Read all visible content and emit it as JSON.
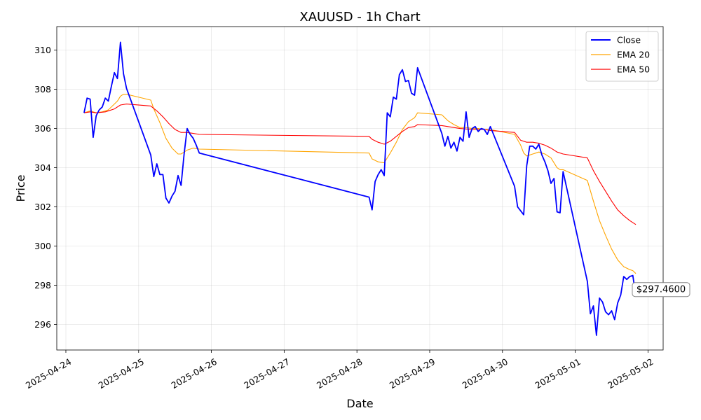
{
  "chart_data": {
    "type": "line",
    "title": "XAUUSD - 1h Chart",
    "xlabel": "Date",
    "ylabel": "Price",
    "xlim": [
      "2025-04-23 21:00",
      "2025-05-02 05:00"
    ],
    "ylim": [
      294.7,
      311.2
    ],
    "grid": true,
    "legend_position": "top-right",
    "x_ticks": [
      {
        "t": "2025-04-24 00:00",
        "label": "2025-04-24"
      },
      {
        "t": "2025-04-25 00:00",
        "label": "2025-04-25"
      },
      {
        "t": "2025-04-26 00:00",
        "label": "2025-04-26"
      },
      {
        "t": "2025-04-27 00:00",
        "label": "2025-04-27"
      },
      {
        "t": "2025-04-28 00:00",
        "label": "2025-04-28"
      },
      {
        "t": "2025-04-29 00:00",
        "label": "2025-04-29"
      },
      {
        "t": "2025-04-30 00:00",
        "label": "2025-04-30"
      },
      {
        "t": "2025-05-01 00:00",
        "label": "2025-05-01"
      },
      {
        "t": "2025-05-02 00:00",
        "label": "2025-05-02"
      }
    ],
    "y_ticks": [
      296,
      298,
      300,
      302,
      304,
      306,
      308,
      310
    ],
    "last_price_label": "$297.4600",
    "last_price": 297.46,
    "series": [
      {
        "name": "Close",
        "color": "#0000ff",
        "points": [
          [
            "2025-04-24 06:00",
            306.8
          ],
          [
            "2025-04-24 07:00",
            307.55
          ],
          [
            "2025-04-24 08:00",
            307.5
          ],
          [
            "2025-04-24 09:00",
            305.55
          ],
          [
            "2025-04-24 10:00",
            306.65
          ],
          [
            "2025-04-24 11:00",
            306.95
          ],
          [
            "2025-04-24 12:00",
            307.1
          ],
          [
            "2025-04-24 13:00",
            307.55
          ],
          [
            "2025-04-24 14:00",
            307.4
          ],
          [
            "2025-04-24 15:00",
            308.15
          ],
          [
            "2025-04-24 16:00",
            308.85
          ],
          [
            "2025-04-24 17:00",
            308.55
          ],
          [
            "2025-04-24 18:00",
            310.4
          ],
          [
            "2025-04-24 19:00",
            308.8
          ],
          [
            "2025-04-24 20:00",
            308.05
          ],
          [
            "2025-04-25 04:00",
            304.65
          ],
          [
            "2025-04-25 05:00",
            303.55
          ],
          [
            "2025-04-25 06:00",
            304.2
          ],
          [
            "2025-04-25 07:00",
            303.65
          ],
          [
            "2025-04-25 08:00",
            303.65
          ],
          [
            "2025-04-25 09:00",
            302.45
          ],
          [
            "2025-04-25 10:00",
            302.2
          ],
          [
            "2025-04-25 11:00",
            302.55
          ],
          [
            "2025-04-25 12:00",
            302.8
          ],
          [
            "2025-04-25 13:00",
            303.6
          ],
          [
            "2025-04-25 14:00",
            303.1
          ],
          [
            "2025-04-25 15:00",
            304.7
          ],
          [
            "2025-04-25 16:00",
            306.0
          ],
          [
            "2025-04-25 17:00",
            305.7
          ],
          [
            "2025-04-25 18:00",
            305.5
          ],
          [
            "2025-04-25 19:00",
            305.15
          ],
          [
            "2025-04-25 20:00",
            304.75
          ],
          [
            "2025-04-28 04:00",
            302.5
          ],
          [
            "2025-04-28 05:00",
            301.85
          ],
          [
            "2025-04-28 06:00",
            303.3
          ],
          [
            "2025-04-28 07:00",
            303.65
          ],
          [
            "2025-04-28 08:00",
            303.9
          ],
          [
            "2025-04-28 09:00",
            303.6
          ],
          [
            "2025-04-28 10:00",
            306.8
          ],
          [
            "2025-04-28 11:00",
            306.6
          ],
          [
            "2025-04-28 12:00",
            307.6
          ],
          [
            "2025-04-28 13:00",
            307.5
          ],
          [
            "2025-04-28 14:00",
            308.75
          ],
          [
            "2025-04-28 15:00",
            309.0
          ],
          [
            "2025-04-28 16:00",
            308.4
          ],
          [
            "2025-04-28 17:00",
            308.45
          ],
          [
            "2025-04-28 18:00",
            307.8
          ],
          [
            "2025-04-28 19:00",
            307.7
          ],
          [
            "2025-04-28 20:00",
            309.1
          ],
          [
            "2025-04-29 04:00",
            305.75
          ],
          [
            "2025-04-29 05:00",
            305.1
          ],
          [
            "2025-04-29 06:00",
            305.6
          ],
          [
            "2025-04-29 07:00",
            305.0
          ],
          [
            "2025-04-29 08:00",
            305.3
          ],
          [
            "2025-04-29 09:00",
            304.85
          ],
          [
            "2025-04-29 10:00",
            305.55
          ],
          [
            "2025-04-29 11:00",
            305.35
          ],
          [
            "2025-04-29 12:00",
            306.85
          ],
          [
            "2025-04-29 13:00",
            305.55
          ],
          [
            "2025-04-29 14:00",
            306.0
          ],
          [
            "2025-04-29 15:00",
            306.1
          ],
          [
            "2025-04-29 16:00",
            305.85
          ],
          [
            "2025-04-29 17:00",
            306.0
          ],
          [
            "2025-04-29 18:00",
            305.95
          ],
          [
            "2025-04-29 19:00",
            305.7
          ],
          [
            "2025-04-29 20:00",
            306.1
          ],
          [
            "2025-04-30 04:00",
            303.05
          ],
          [
            "2025-04-30 05:00",
            302.0
          ],
          [
            "2025-04-30 06:00",
            301.8
          ],
          [
            "2025-04-30 07:00",
            301.6
          ],
          [
            "2025-04-30 08:00",
            304.1
          ],
          [
            "2025-04-30 09:00",
            305.1
          ],
          [
            "2025-04-30 10:00",
            305.1
          ],
          [
            "2025-04-30 11:00",
            304.95
          ],
          [
            "2025-04-30 12:00",
            305.2
          ],
          [
            "2025-04-30 13:00",
            304.65
          ],
          [
            "2025-04-30 14:00",
            304.3
          ],
          [
            "2025-04-30 15:00",
            303.85
          ],
          [
            "2025-04-30 16:00",
            303.2
          ],
          [
            "2025-04-30 17:00",
            303.45
          ],
          [
            "2025-04-30 18:00",
            301.75
          ],
          [
            "2025-04-30 19:00",
            301.7
          ],
          [
            "2025-04-30 20:00",
            303.8
          ],
          [
            "2025-05-01 04:00",
            298.2
          ],
          [
            "2025-05-01 05:00",
            296.55
          ],
          [
            "2025-05-01 06:00",
            296.95
          ],
          [
            "2025-05-01 07:00",
            295.45
          ],
          [
            "2025-05-01 08:00",
            297.35
          ],
          [
            "2025-05-01 09:00",
            297.15
          ],
          [
            "2025-05-01 10:00",
            296.65
          ],
          [
            "2025-05-01 11:00",
            296.5
          ],
          [
            "2025-05-01 12:00",
            296.7
          ],
          [
            "2025-05-01 13:00",
            296.25
          ],
          [
            "2025-05-01 14:00",
            297.1
          ],
          [
            "2025-05-01 15:00",
            297.5
          ],
          [
            "2025-05-01 16:00",
            298.45
          ],
          [
            "2025-05-01 17:00",
            298.3
          ],
          [
            "2025-05-01 18:00",
            298.45
          ],
          [
            "2025-05-01 19:00",
            298.5
          ],
          [
            "2025-05-01 20:00",
            297.46
          ]
        ]
      },
      {
        "name": "EMA 20",
        "color": "#ffa500",
        "points": [
          [
            "2025-04-24 06:00",
            306.8
          ],
          [
            "2025-04-24 08:00",
            306.9
          ],
          [
            "2025-04-24 10:00",
            306.8
          ],
          [
            "2025-04-24 12:00",
            306.85
          ],
          [
            "2025-04-24 14:00",
            306.95
          ],
          [
            "2025-04-24 16:00",
            307.25
          ],
          [
            "2025-04-24 17:00",
            307.4
          ],
          [
            "2025-04-24 18:00",
            307.65
          ],
          [
            "2025-04-24 19:00",
            307.75
          ],
          [
            "2025-04-24 20:00",
            307.75
          ],
          [
            "2025-04-25 04:00",
            307.45
          ],
          [
            "2025-04-25 05:00",
            307.0
          ],
          [
            "2025-04-25 07:00",
            306.3
          ],
          [
            "2025-04-25 09:00",
            305.5
          ],
          [
            "2025-04-25 11:00",
            305.0
          ],
          [
            "2025-04-25 13:00",
            304.7
          ],
          [
            "2025-04-25 14:00",
            304.7
          ],
          [
            "2025-04-25 16:00",
            304.9
          ],
          [
            "2025-04-25 18:00",
            305.0
          ],
          [
            "2025-04-25 20:00",
            304.95
          ],
          [
            "2025-04-28 04:00",
            304.75
          ],
          [
            "2025-04-28 05:00",
            304.45
          ],
          [
            "2025-04-28 07:00",
            304.3
          ],
          [
            "2025-04-28 09:00",
            304.25
          ],
          [
            "2025-04-28 11:00",
            304.75
          ],
          [
            "2025-04-28 13:00",
            305.3
          ],
          [
            "2025-04-28 15:00",
            305.95
          ],
          [
            "2025-04-28 17:00",
            306.35
          ],
          [
            "2025-04-28 19:00",
            306.55
          ],
          [
            "2025-04-28 20:00",
            306.8
          ],
          [
            "2025-04-29 04:00",
            306.7
          ],
          [
            "2025-04-29 06:00",
            306.4
          ],
          [
            "2025-04-29 08:00",
            306.2
          ],
          [
            "2025-04-29 10:00",
            306.05
          ],
          [
            "2025-04-29 12:00",
            306.05
          ],
          [
            "2025-04-29 14:00",
            306.0
          ],
          [
            "2025-04-29 16:00",
            306.0
          ],
          [
            "2025-04-29 18:00",
            305.95
          ],
          [
            "2025-04-29 20:00",
            305.95
          ],
          [
            "2025-04-30 04:00",
            305.7
          ],
          [
            "2025-04-30 06:00",
            305.15
          ],
          [
            "2025-04-30 07:00",
            304.75
          ],
          [
            "2025-04-30 08:00",
            304.6
          ],
          [
            "2025-04-30 10:00",
            304.7
          ],
          [
            "2025-04-30 12:00",
            304.8
          ],
          [
            "2025-04-30 14:00",
            304.7
          ],
          [
            "2025-04-30 16:00",
            304.5
          ],
          [
            "2025-04-30 18:00",
            304.0
          ],
          [
            "2025-04-30 19:00",
            303.9
          ],
          [
            "2025-04-30 20:00",
            303.9
          ],
          [
            "2025-05-01 04:00",
            303.35
          ],
          [
            "2025-05-01 06:00",
            302.3
          ],
          [
            "2025-05-01 08:00",
            301.3
          ],
          [
            "2025-05-01 10:00",
            300.55
          ],
          [
            "2025-05-01 12:00",
            299.85
          ],
          [
            "2025-05-01 14:00",
            299.3
          ],
          [
            "2025-05-01 16:00",
            298.95
          ],
          [
            "2025-05-01 18:00",
            298.8
          ],
          [
            "2025-05-01 19:00",
            298.75
          ],
          [
            "2025-05-01 20:00",
            298.6
          ]
        ]
      },
      {
        "name": "EMA 50",
        "color": "#ff0000",
        "points": [
          [
            "2025-04-24 06:00",
            306.8
          ],
          [
            "2025-04-24 08:00",
            306.85
          ],
          [
            "2025-04-24 10:00",
            306.8
          ],
          [
            "2025-04-24 13:00",
            306.85
          ],
          [
            "2025-04-24 16:00",
            307.0
          ],
          [
            "2025-04-24 18:00",
            307.2
          ],
          [
            "2025-04-24 20:00",
            307.25
          ],
          [
            "2025-04-25 04:00",
            307.15
          ],
          [
            "2025-04-25 06:00",
            306.9
          ],
          [
            "2025-04-25 08:00",
            306.6
          ],
          [
            "2025-04-25 10:00",
            306.25
          ],
          [
            "2025-04-25 12:00",
            305.95
          ],
          [
            "2025-04-25 14:00",
            305.8
          ],
          [
            "2025-04-25 16:00",
            305.8
          ],
          [
            "2025-04-25 18:00",
            305.75
          ],
          [
            "2025-04-25 20:00",
            305.7
          ],
          [
            "2025-04-28 04:00",
            305.6
          ],
          [
            "2025-04-28 05:00",
            305.45
          ],
          [
            "2025-04-28 07:00",
            305.3
          ],
          [
            "2025-04-28 09:00",
            305.2
          ],
          [
            "2025-04-28 11:00",
            305.35
          ],
          [
            "2025-04-28 13:00",
            305.6
          ],
          [
            "2025-04-28 15:00",
            305.85
          ],
          [
            "2025-04-28 17:00",
            306.05
          ],
          [
            "2025-04-28 19:00",
            306.1
          ],
          [
            "2025-04-28 20:00",
            306.2
          ],
          [
            "2025-04-29 04:00",
            306.15
          ],
          [
            "2025-04-29 06:00",
            306.1
          ],
          [
            "2025-04-29 08:00",
            306.05
          ],
          [
            "2025-04-29 10:00",
            306.0
          ],
          [
            "2025-04-29 14:00",
            305.95
          ],
          [
            "2025-04-29 18:00",
            305.95
          ],
          [
            "2025-04-29 20:00",
            305.9
          ],
          [
            "2025-04-30 04:00",
            305.8
          ],
          [
            "2025-04-30 06:00",
            305.4
          ],
          [
            "2025-04-30 08:00",
            305.3
          ],
          [
            "2025-04-30 10:00",
            305.3
          ],
          [
            "2025-04-30 12:00",
            305.25
          ],
          [
            "2025-04-30 14:00",
            305.15
          ],
          [
            "2025-04-30 16:00",
            305.0
          ],
          [
            "2025-04-30 18:00",
            304.8
          ],
          [
            "2025-04-30 20:00",
            304.7
          ],
          [
            "2025-05-01 04:00",
            304.5
          ],
          [
            "2025-05-01 06:00",
            303.85
          ],
          [
            "2025-05-01 08:00",
            303.3
          ],
          [
            "2025-05-01 10:00",
            302.8
          ],
          [
            "2025-05-01 12:00",
            302.3
          ],
          [
            "2025-05-01 14:00",
            301.85
          ],
          [
            "2025-05-01 16:00",
            301.55
          ],
          [
            "2025-05-01 18:00",
            301.3
          ],
          [
            "2025-05-01 20:00",
            301.1
          ]
        ]
      }
    ]
  }
}
